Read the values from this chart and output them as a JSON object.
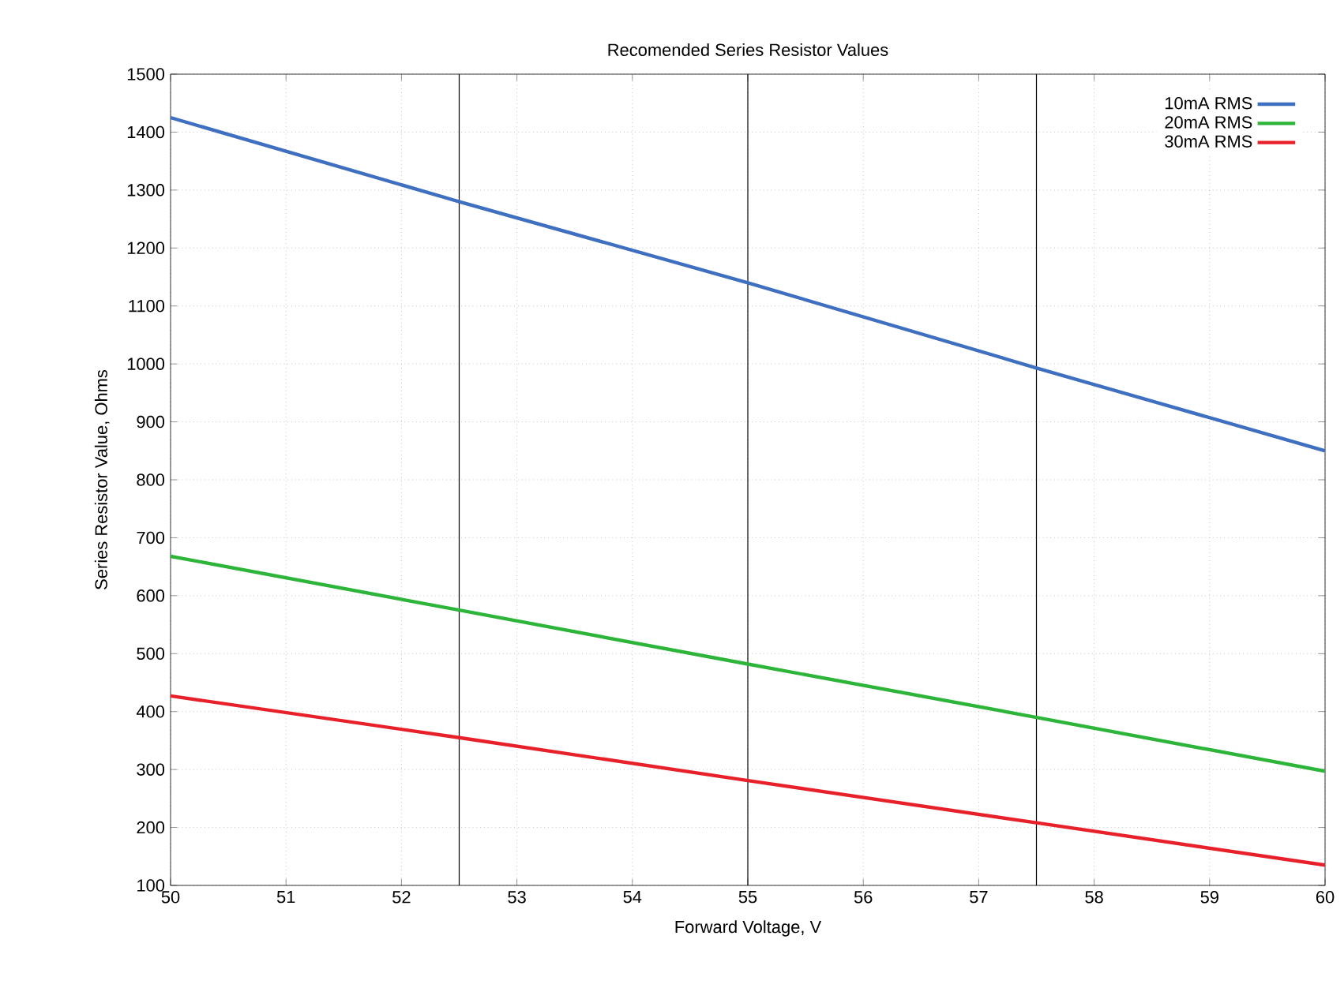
{
  "chart_data": {
    "type": "line",
    "title": "Recomended Series Resistor Values",
    "xlabel": "Forward Voltage, V",
    "ylabel": "Series Resistor Value, Ohms",
    "x": [
      50,
      52.5,
      55,
      57.5,
      60
    ],
    "series": [
      {
        "name": "10mA RMS",
        "color": "#3f6fc0",
        "values": [
          1425,
          1280,
          1140,
          993,
          850
        ]
      },
      {
        "name": "20mA RMS",
        "color": "#2db53a",
        "values": [
          668,
          575,
          482,
          390,
          297
        ]
      },
      {
        "name": "30mA RMS",
        "color": "#e8202a",
        "values": [
          427,
          355,
          281,
          208,
          135
        ]
      }
    ],
    "xlim": [
      50,
      60
    ],
    "ylim": [
      100,
      1500
    ],
    "xticks": [
      50,
      51,
      52,
      53,
      54,
      55,
      56,
      57,
      58,
      59,
      60
    ],
    "yticks": [
      100,
      200,
      300,
      400,
      500,
      600,
      700,
      800,
      900,
      1000,
      1100,
      1200,
      1300,
      1400,
      1500
    ],
    "ref_lines": [
      {
        "axis": "x",
        "value": 52.5,
        "color": "#000000"
      },
      {
        "axis": "x",
        "value": 55,
        "color": "#000000"
      },
      {
        "axis": "x",
        "value": 57.5,
        "color": "#000000"
      }
    ],
    "grid": true,
    "legend": "top right",
    "marker": "none",
    "line_style": "solid"
  }
}
